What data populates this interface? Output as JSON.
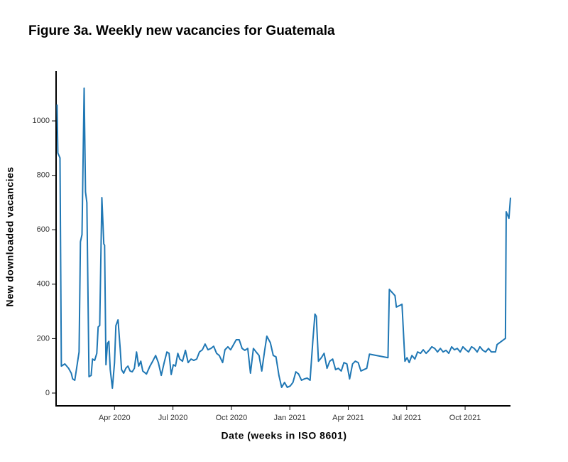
{
  "chart_data": {
    "type": "line",
    "title": "Figure 3a. Weekly new vacancies for Guatemala",
    "x_label": "Date (weeks in ISO 8601)",
    "y_label": "New downloaded vacancies",
    "color": "#1f77b4",
    "x": [
      0.05,
      0.09,
      0.2,
      0.27,
      0.45,
      0.64,
      0.78,
      0.85,
      0.96,
      1.07,
      1.18,
      1.25,
      1.33,
      1.44,
      1.51,
      1.58,
      1.69,
      1.8,
      1.87,
      1.98,
      2.09,
      2.16,
      2.24,
      2.35,
      2.45,
      2.49,
      2.56,
      2.64,
      2.71,
      2.78,
      2.89,
      3.0,
      3.07,
      3.18,
      3.29,
      3.36,
      3.47,
      3.58,
      3.69,
      3.8,
      3.91,
      4.02,
      4.13,
      4.24,
      4.35,
      4.45,
      4.64,
      4.82,
      4.96,
      5.11,
      5.25,
      5.4,
      5.55,
      5.69,
      5.8,
      5.91,
      6.02,
      6.13,
      6.25,
      6.35,
      6.49,
      6.64,
      6.78,
      6.93,
      7.07,
      7.22,
      7.36,
      7.51,
      7.65,
      7.8,
      7.95,
      8.09,
      8.24,
      8.38,
      8.55,
      8.67,
      8.82,
      8.96,
      9.11,
      9.25,
      9.4,
      9.55,
      9.69,
      9.84,
      9.98,
      10.13,
      10.27,
      10.42,
      10.56,
      10.71,
      10.82,
      11.0,
      11.15,
      11.29,
      11.44,
      11.58,
      11.73,
      11.87,
      12.02,
      12.16,
      12.31,
      12.45,
      12.6,
      12.75,
      12.89,
      13.04,
      13.18,
      13.29,
      13.36,
      13.47,
      13.62,
      13.76,
      13.91,
      14.05,
      14.2,
      14.35,
      14.49,
      14.64,
      14.78,
      14.93,
      15.07,
      15.22,
      15.36,
      15.51,
      15.65,
      15.8,
      15.95,
      16.09,
      17.04,
      17.11,
      17.4,
      17.47,
      17.76,
      17.91,
      18.02,
      18.13,
      18.27,
      18.42,
      18.56,
      18.71,
      18.85,
      19.0,
      19.15,
      19.29,
      19.44,
      19.58,
      19.73,
      19.87,
      20.02,
      20.16,
      20.31,
      20.45,
      20.6,
      20.75,
      20.89,
      21.04,
      21.18,
      21.33,
      21.47,
      21.62,
      21.76,
      21.91,
      22.05,
      22.2,
      22.35,
      22.56,
      22.64,
      23.07,
      23.11,
      23.25,
      23.33
    ],
    "values": [
      1060,
      882,
      864,
      99,
      107,
      91,
      73,
      52,
      47,
      99,
      151,
      556,
      582,
      1120,
      739,
      700,
      60,
      65,
      125,
      120,
      146,
      243,
      248,
      718,
      548,
      543,
      104,
      183,
      190,
      86,
      18,
      112,
      248,
      269,
      164,
      86,
      73,
      91,
      99,
      81,
      78,
      91,
      151,
      99,
      117,
      81,
      70,
      99,
      117,
      138,
      112,
      65,
      112,
      151,
      146,
      68,
      104,
      99,
      146,
      125,
      117,
      157,
      112,
      125,
      120,
      125,
      151,
      159,
      180,
      159,
      164,
      172,
      146,
      138,
      112,
      159,
      170,
      159,
      178,
      196,
      196,
      164,
      157,
      164,
      73,
      164,
      151,
      138,
      81,
      157,
      209,
      185,
      138,
      133,
      65,
      21,
      39,
      21,
      26,
      39,
      78,
      70,
      47,
      52,
      55,
      47,
      190,
      290,
      282,
      117,
      130,
      146,
      91,
      117,
      125,
      86,
      91,
      81,
      112,
      107,
      52,
      107,
      117,
      112,
      81,
      86,
      91,
      143,
      130,
      381,
      358,
      316,
      326,
      117,
      130,
      112,
      138,
      125,
      151,
      146,
      159,
      146,
      157,
      170,
      164,
      151,
      164,
      151,
      157,
      146,
      170,
      159,
      164,
      151,
      170,
      159,
      151,
      170,
      164,
      151,
      170,
      157,
      151,
      164,
      151,
      151,
      178,
      201,
      666,
      642,
      718
    ],
    "xlim": [
      0,
      23.33
    ],
    "xticks": [
      {
        "value": 3,
        "label": "Apr 2020"
      },
      {
        "value": 6,
        "label": "Jul 2020"
      },
      {
        "value": 9,
        "label": "Oct 2020"
      },
      {
        "value": 12,
        "label": "Jan 2021"
      },
      {
        "value": 15,
        "label": "Apr 2021"
      },
      {
        "value": 18,
        "label": "Jul 2021"
      },
      {
        "value": 21,
        "label": "Oct 2021"
      }
    ],
    "ylim": [
      -47,
      1183
    ],
    "yticks": [
      0,
      200,
      400,
      600,
      800,
      1000
    ]
  }
}
